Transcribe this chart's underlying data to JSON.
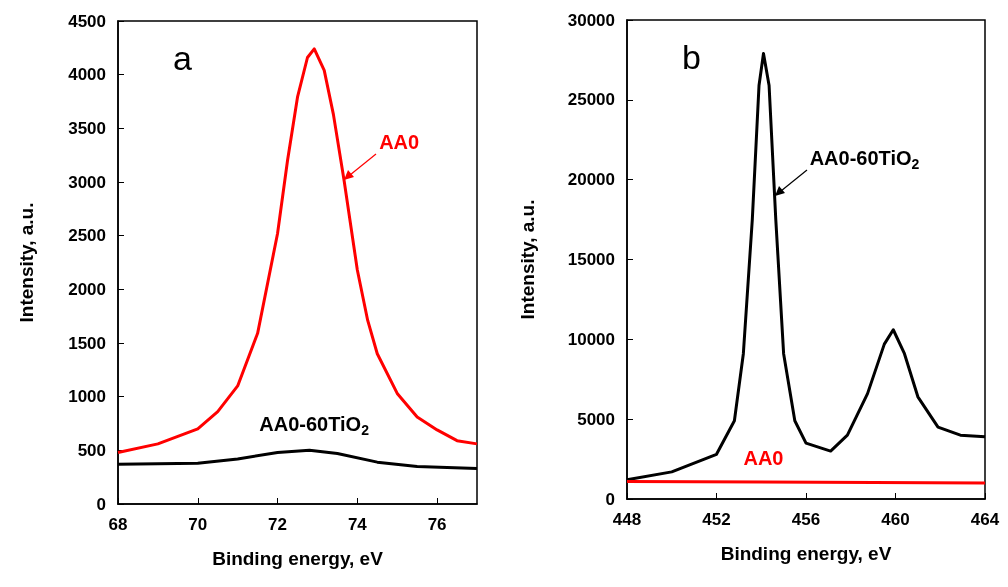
{
  "chart_data": [
    {
      "type": "line",
      "xlabel": "Binding energy, eV",
      "ylabel": "Intensity, a.u.",
      "xlim": [
        68,
        77
      ],
      "xticks": [
        68,
        70,
        72,
        74,
        76
      ],
      "ylim": [
        0,
        4500
      ],
      "yticks": [
        0,
        500,
        1000,
        1500,
        2000,
        2500,
        3000,
        3500,
        4000,
        4500
      ],
      "marker": "none",
      "series": [
        {
          "color": "#ff0000",
          "x": [
            68,
            69,
            70,
            70.5,
            71,
            71.5,
            72,
            72.25,
            72.5,
            72.75,
            72.92,
            73.17,
            73.4,
            73.67,
            74,
            74.26,
            74.5,
            75,
            75.5,
            76,
            76.5,
            77
          ],
          "values": [
            480,
            560,
            700,
            860,
            1100,
            1590,
            2520,
            3200,
            3790,
            4160,
            4240,
            4040,
            3630,
            3010,
            2180,
            1710,
            1400,
            1030,
            810,
            690,
            590,
            560
          ]
        },
        {
          "name": "AA0-60TiO$_{2}$",
          "color": "#000000",
          "x": [
            68,
            70,
            71,
            72,
            72.8,
            73.5,
            74.5,
            75.5,
            77
          ],
          "values": [
            370,
            380,
            420,
            480,
            500,
            470,
            390,
            350,
            330
          ]
        }
      ],
      "annotations": [
        "a",
        {
          "text": "AA0",
          "x": 73.67,
          "y": 3010
        }
      ]
    },
    {
      "type": "line",
      "xlabel": "Binding energy, eV",
      "ylabel": "Intensity, a.u.",
      "xlim": [
        448,
        464
      ],
      "xticks": [
        448,
        452,
        456,
        460,
        464
      ],
      "ylim": [
        0,
        30000
      ],
      "yticks": [
        0,
        5000,
        10000,
        15000,
        20000,
        25000,
        30000
      ],
      "marker": "none",
      "series": [
        {
          "color": "#000000",
          "x": [
            448,
            450,
            452,
            452.8,
            453.2,
            453.6,
            453.9,
            454.1,
            454.35,
            454.65,
            455,
            455.5,
            456,
            457.1,
            457.85,
            458.75,
            459.5,
            459.9,
            460.4,
            461,
            461.9,
            462.9,
            464
          ],
          "values": [
            1200,
            1700,
            2800,
            4900,
            9100,
            17500,
            25900,
            27900,
            25900,
            17500,
            9100,
            4900,
            3500,
            3000,
            4000,
            6600,
            9700,
            10600,
            9100,
            6400,
            4500,
            4000,
            3900
          ]
        },
        {
          "name": "AA0",
          "color": "#ff0000",
          "x": [
            448,
            464
          ],
          "values": [
            1100,
            1000
          ]
        }
      ],
      "annotations": [
        "b",
        {
          "text": "AA0-60TiO$_{2}$",
          "x": 454.6,
          "y": 18900
        }
      ]
    }
  ]
}
